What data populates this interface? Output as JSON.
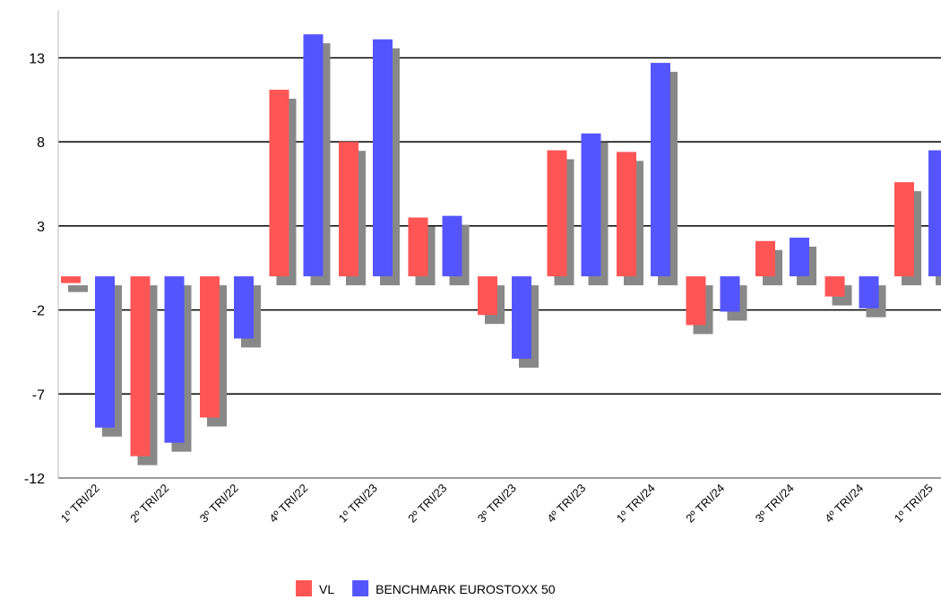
{
  "chart_data": {
    "type": "bar",
    "categories": [
      "1º TRI/22",
      "2º TRI/22",
      "3º TRI/22",
      "4º TRI/22",
      "1º TRI/23",
      "2º TRI/23",
      "3º TRI/23",
      "4º TRI/23",
      "1º TRI/24",
      "2º TRI/24",
      "3º TRI/24",
      "4º TRI/24",
      "1º TRI/25"
    ],
    "series": [
      {
        "name": "VL",
        "color": "#ff5555",
        "values": [
          -0.4,
          -10.7,
          -8.4,
          11.1,
          8.0,
          3.5,
          -2.3,
          7.5,
          7.4,
          -2.9,
          2.1,
          -1.2,
          5.6
        ]
      },
      {
        "name": "BENCHMARK EUROSTOXX 50",
        "color": "#5555ff",
        "values": [
          -9.0,
          -9.9,
          -3.7,
          14.4,
          14.1,
          3.6,
          -4.9,
          8.5,
          12.7,
          -2.1,
          2.3,
          -1.9,
          7.5
        ]
      }
    ],
    "ylim": [
      -12,
      15.8
    ],
    "yticks": [
      -12,
      -7,
      -2,
      3,
      8,
      13
    ],
    "grid": true,
    "legend": "bottom"
  }
}
